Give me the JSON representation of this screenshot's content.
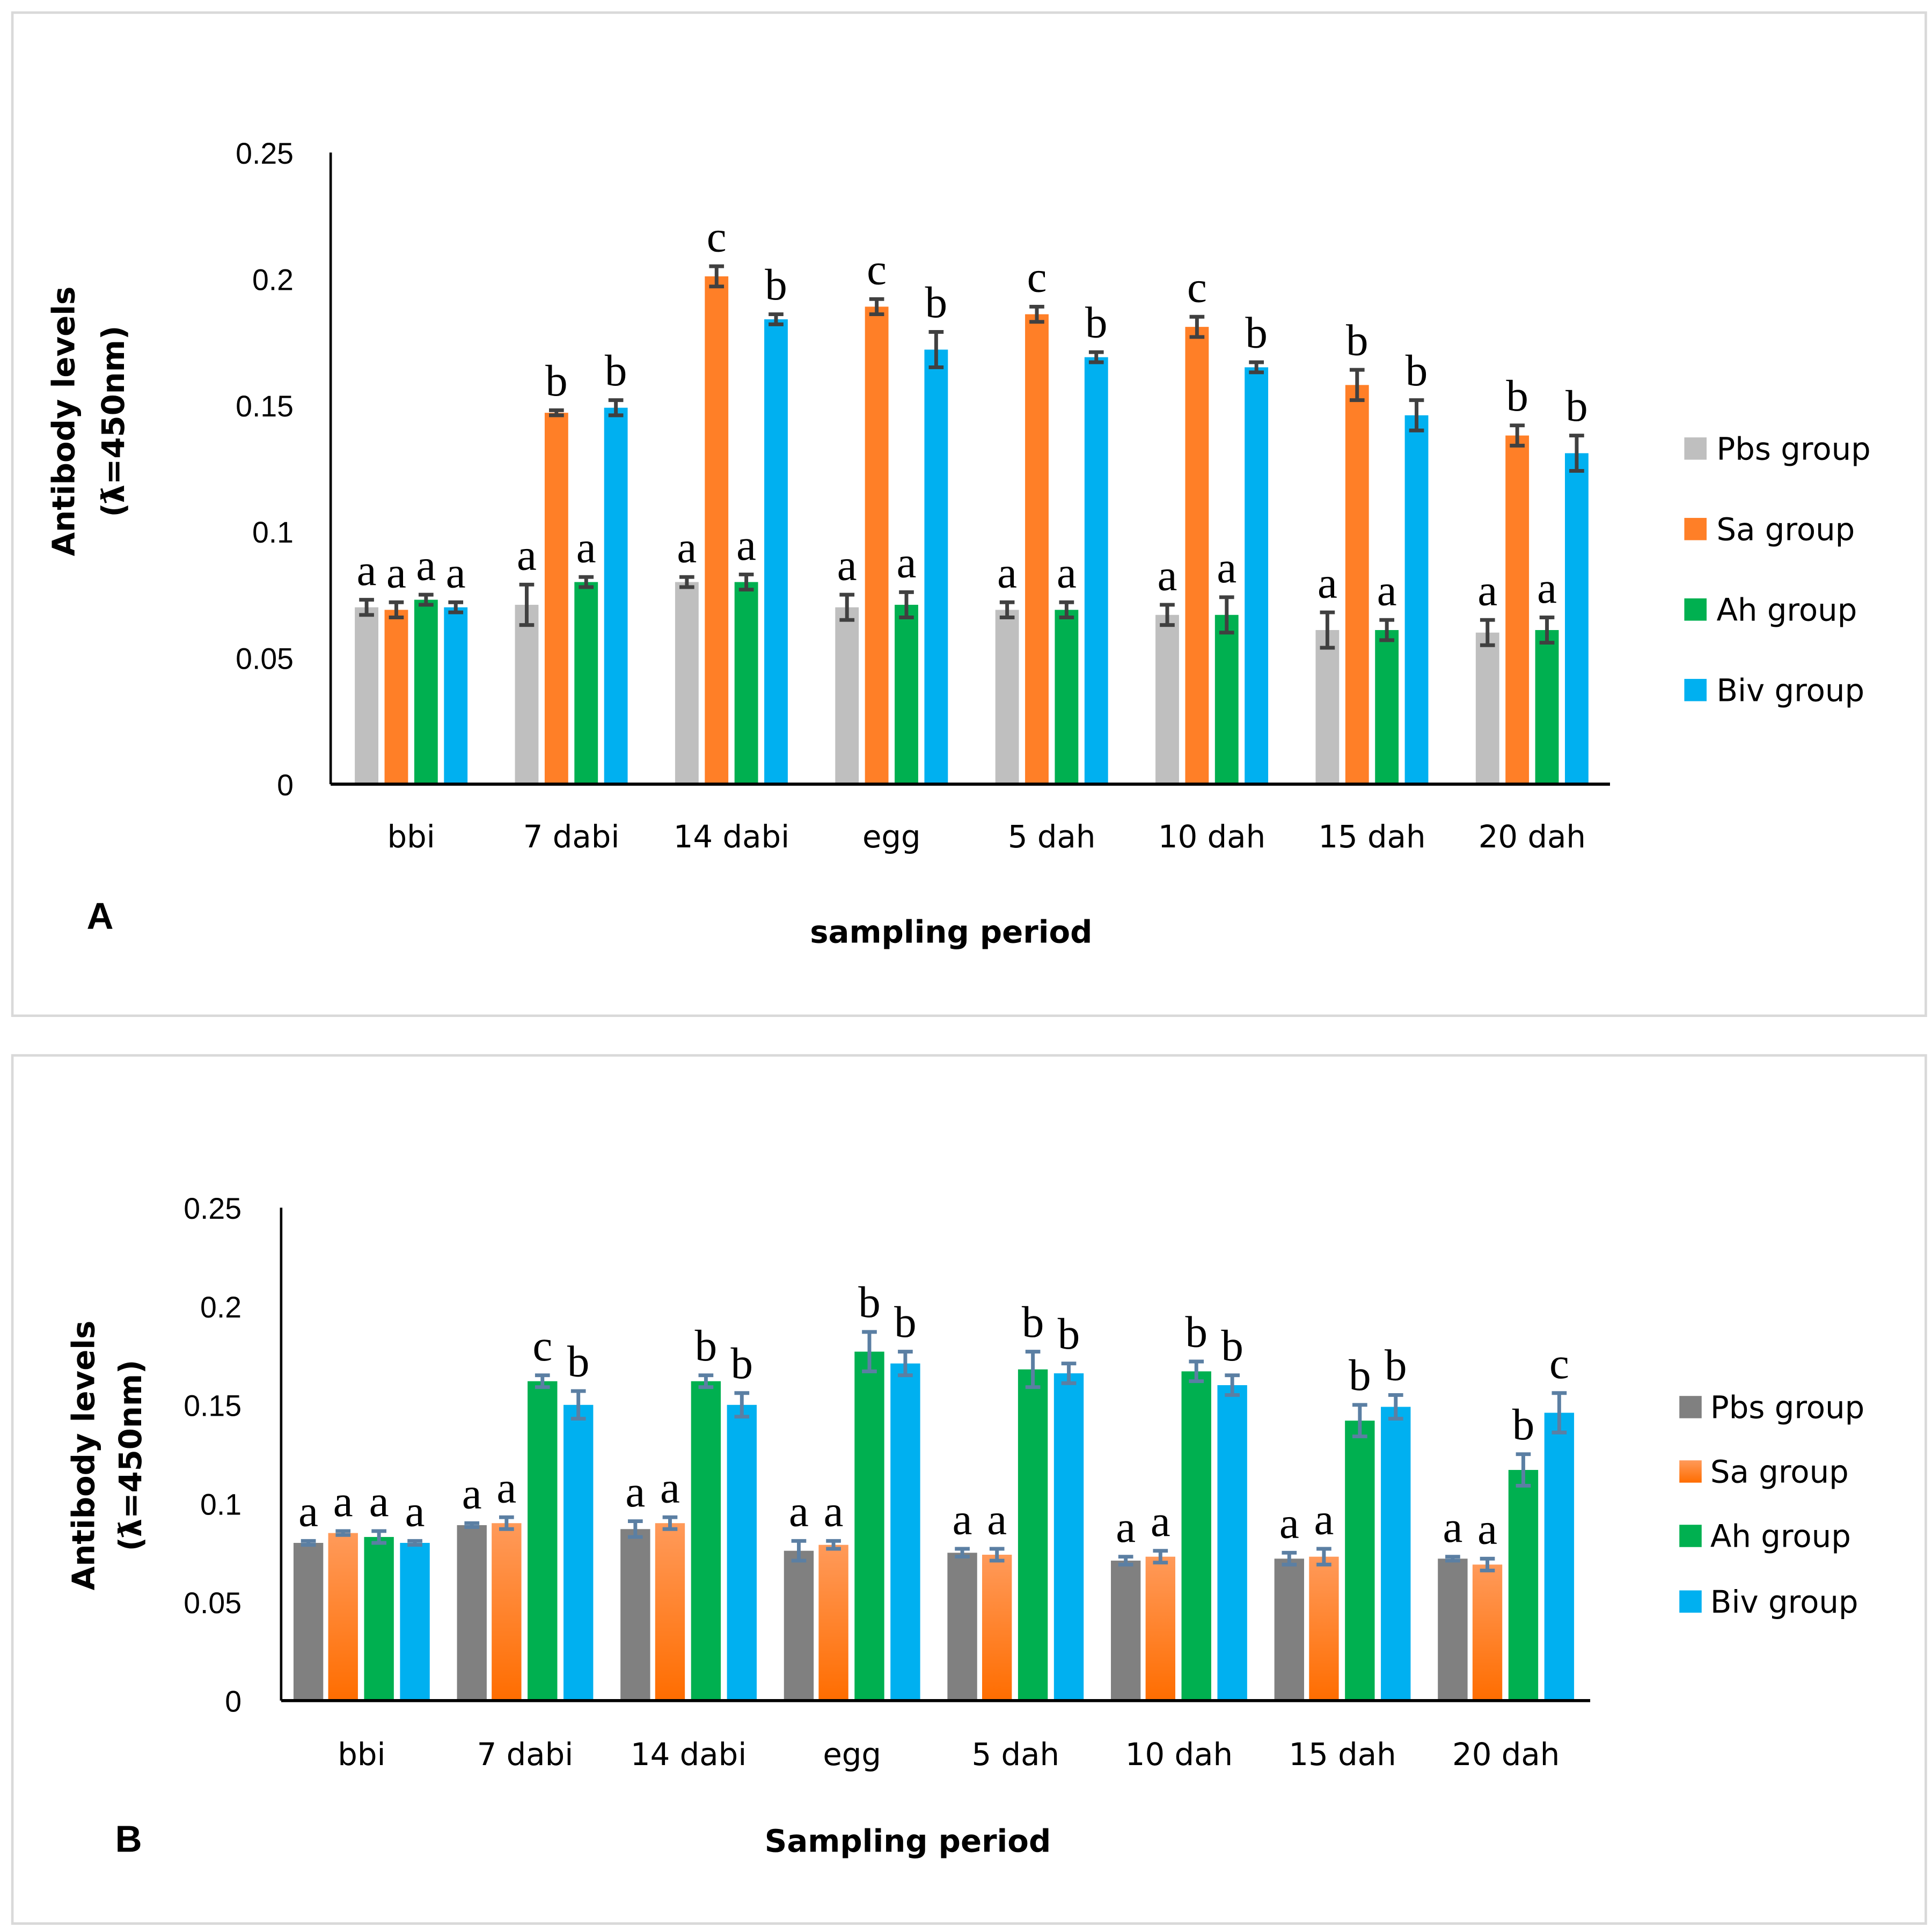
{
  "chart_data": [
    {
      "type": "bar",
      "panel_label": "A",
      "xlabel": "sampling period",
      "ylabel": [
        "Antibody levels",
        "(ƛ=450nm)"
      ],
      "ylim": [
        0,
        0.25
      ],
      "yticks": [
        "0",
        "0.05",
        "0.1",
        "0.15",
        "0.2",
        "0.25"
      ],
      "legend_position": "right",
      "categories": [
        "bbi",
        "7 dabi",
        "14 dabi",
        "egg",
        "5 dah",
        "10 dah",
        "15 dah",
        "20 dah"
      ],
      "series": [
        {
          "name": "Pbs group",
          "color": "#bfbfbf",
          "values": [
            0.07,
            0.071,
            0.08,
            0.07,
            0.069,
            0.067,
            0.061,
            0.06
          ],
          "errors": [
            0.003,
            0.008,
            0.002,
            0.005,
            0.003,
            0.004,
            0.007,
            0.005
          ],
          "letters": [
            "a",
            "a",
            "a",
            "a",
            "a",
            "a",
            "a",
            "a"
          ]
        },
        {
          "name": "Sa group",
          "color": "#ff7f27",
          "values": [
            0.069,
            0.147,
            0.201,
            0.189,
            0.186,
            0.181,
            0.158,
            0.138
          ],
          "errors": [
            0.003,
            0.001,
            0.004,
            0.003,
            0.003,
            0.004,
            0.006,
            0.004
          ],
          "letters": [
            "a",
            "b",
            "c",
            "c",
            "c",
            "c",
            "b",
            "b"
          ]
        },
        {
          "name": "Ah group",
          "color": "#00b050",
          "values": [
            0.073,
            0.08,
            0.08,
            0.071,
            0.069,
            0.067,
            0.061,
            0.061
          ],
          "errors": [
            0.002,
            0.002,
            0.003,
            0.005,
            0.003,
            0.007,
            0.004,
            0.005
          ],
          "letters": [
            "a",
            "a",
            "a",
            "a",
            "a",
            "a",
            "a",
            "a"
          ]
        },
        {
          "name": "Biv group",
          "color": "#00b0f0",
          "values": [
            0.07,
            0.149,
            0.184,
            0.172,
            0.169,
            0.165,
            0.146,
            0.131
          ],
          "errors": [
            0.002,
            0.003,
            0.002,
            0.007,
            0.002,
            0.002,
            0.006,
            0.007
          ],
          "letters": [
            "a",
            "b",
            "b",
            "b",
            "b",
            "b",
            "b",
            "b"
          ]
        }
      ],
      "error_bar_color": "#404040"
    },
    {
      "type": "bar",
      "panel_label": "B",
      "xlabel": "Sampling period",
      "ylabel": [
        "Antibody levels",
        "(ƛ=450nm)"
      ],
      "ylim": [
        0,
        0.25
      ],
      "yticks": [
        "0",
        "0.05",
        "0.1",
        "0.15",
        "0.2",
        "0.25"
      ],
      "legend_position": "right",
      "categories": [
        "bbi",
        "7 dabi",
        "14 dabi",
        "egg",
        "5 dah",
        "10 dah",
        "15 dah",
        "20 dah"
      ],
      "series": [
        {
          "name": "Pbs group",
          "color": "#808080",
          "values": [
            0.08,
            0.089,
            0.087,
            0.076,
            0.075,
            0.071,
            0.072,
            0.072
          ],
          "errors": [
            0.001,
            0.001,
            0.004,
            0.005,
            0.002,
            0.002,
            0.003,
            0.001
          ],
          "letters": [
            "a",
            "a",
            "a",
            "a",
            "a",
            "a",
            "a",
            "a"
          ]
        },
        {
          "name": "Sa group",
          "color": "#ff7a1f",
          "values": [
            0.085,
            0.09,
            0.09,
            0.079,
            0.074,
            0.073,
            0.073,
            0.069
          ],
          "errors": [
            0.001,
            0.003,
            0.003,
            0.002,
            0.003,
            0.003,
            0.004,
            0.003
          ],
          "letters": [
            "a",
            "a",
            "a",
            "a",
            "a",
            "a",
            "a",
            "a"
          ]
        },
        {
          "name": "Ah group",
          "color": "#00b050",
          "values": [
            0.083,
            0.162,
            0.162,
            0.177,
            0.168,
            0.167,
            0.142,
            0.117
          ],
          "errors": [
            0.003,
            0.003,
            0.003,
            0.01,
            0.009,
            0.005,
            0.008,
            0.008
          ],
          "letters": [
            "a",
            "c",
            "b",
            "b",
            "b",
            "b",
            "b",
            "b"
          ]
        },
        {
          "name": "Biv group",
          "color": "#00b0f0",
          "values": [
            0.08,
            0.15,
            0.15,
            0.171,
            0.166,
            0.16,
            0.149,
            0.146
          ],
          "errors": [
            0.001,
            0.007,
            0.006,
            0.006,
            0.005,
            0.005,
            0.006,
            0.01
          ],
          "letters": [
            "a",
            "b",
            "b",
            "b",
            "b",
            "b",
            "b",
            "c"
          ]
        }
      ],
      "error_bar_color": "#5b7fa3"
    }
  ]
}
